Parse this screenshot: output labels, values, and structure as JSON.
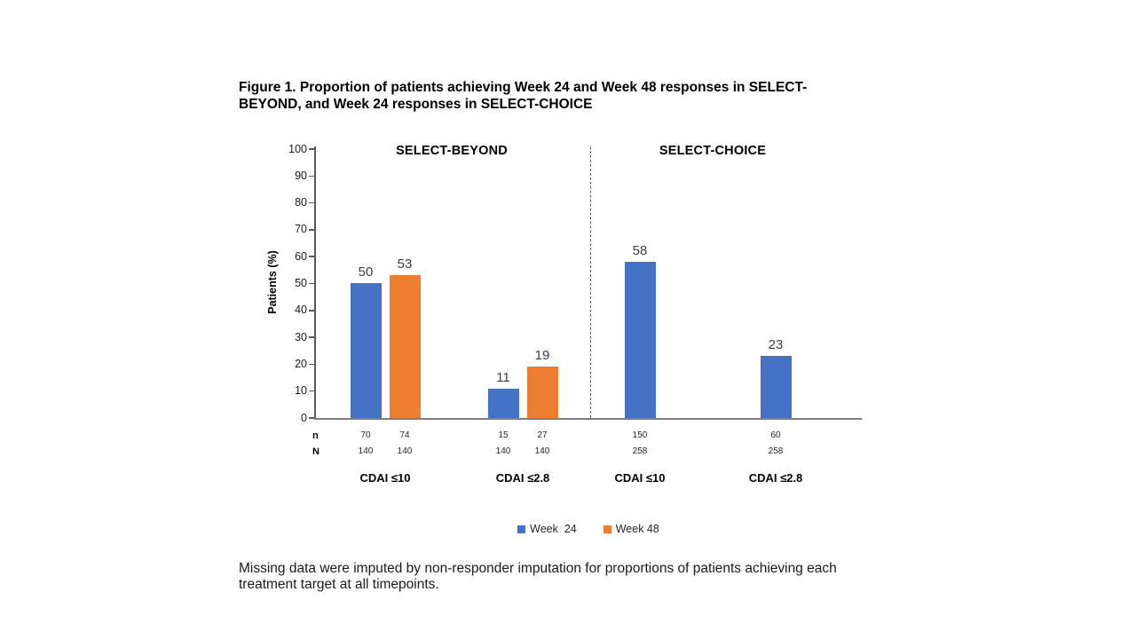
{
  "figure": {
    "title": "Figure 1. Proportion of patients achieving Week 24 and Week 48 responses in SELECT-BEYOND, and Week 24 responses in SELECT-CHOICE",
    "footnote": "Missing data were imputed by non-responder imputation for proportions of patients achieving each treatment target at all timepoints."
  },
  "chart_data": {
    "type": "bar",
    "ylabel": "Patients (%)",
    "ylim": [
      0,
      100
    ],
    "ytick_step": 10,
    "grid": false,
    "legend_position": "bottom",
    "row_labels": {
      "n": "n",
      "N": "N"
    },
    "series_colors": {
      "Week 24": "#4472C4",
      "Week 48": "#ED7D31"
    },
    "panels": [
      {
        "title": "SELECT-BEYOND",
        "groups": [
          {
            "category": "CDAI ≤10",
            "bars": [
              {
                "series": "Week 24",
                "value": 50,
                "n": "70",
                "N": "140"
              },
              {
                "series": "Week 48",
                "value": 53,
                "n": "74",
                "N": "140"
              }
            ]
          },
          {
            "category": "CDAI ≤2.8",
            "bars": [
              {
                "series": "Week 24",
                "value": 11,
                "n": "15",
                "N": "140"
              },
              {
                "series": "Week 48",
                "value": 19,
                "n": "27",
                "N": "140"
              }
            ]
          }
        ]
      },
      {
        "title": "SELECT-CHOICE",
        "groups": [
          {
            "category": "CDAI ≤10",
            "bars": [
              {
                "series": "Week 24",
                "value": 58,
                "n": "150",
                "N": "258"
              }
            ]
          },
          {
            "category": "CDAI ≤2.8",
            "bars": [
              {
                "series": "Week 24",
                "value": 23,
                "n": "60",
                "N": "258"
              }
            ]
          }
        ]
      }
    ],
    "legend": [
      {
        "label": "Week  24",
        "color": "#4472C4"
      },
      {
        "label": "Week 48",
        "color": "#ED7D31"
      }
    ]
  }
}
